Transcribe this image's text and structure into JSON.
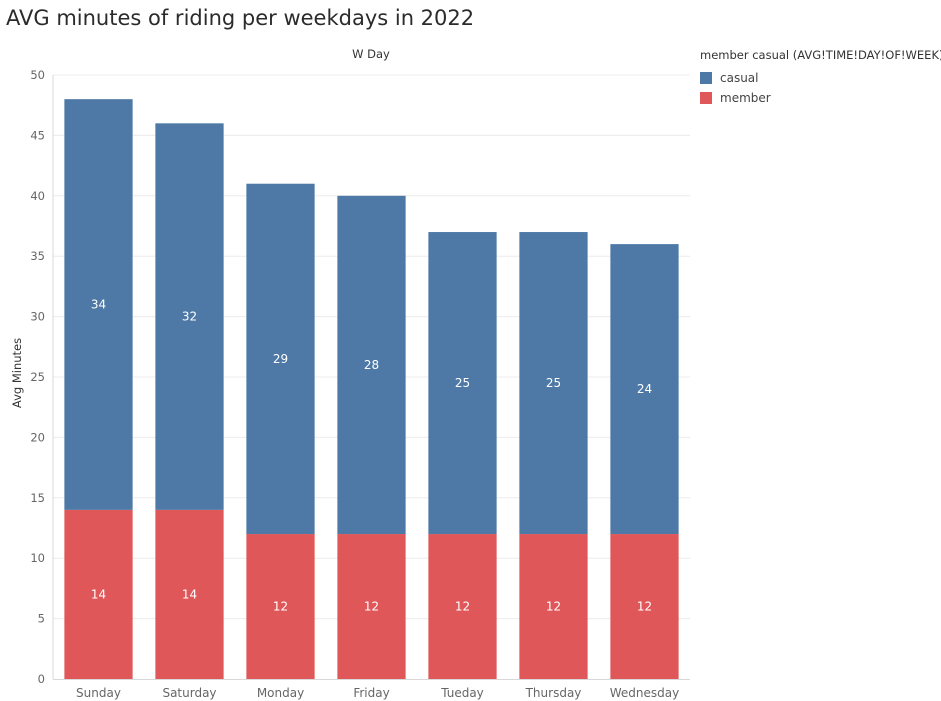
{
  "chart_data": {
    "type": "bar",
    "stacked": true,
    "title": "AVG minutes of riding per weekdays in 2022",
    "column_header": "W Day",
    "xlabel": "",
    "ylabel": "Avg Minutes",
    "ylim": [
      0,
      50
    ],
    "yticks": [
      0,
      5,
      10,
      15,
      20,
      25,
      30,
      35,
      40,
      45,
      50
    ],
    "grid": true,
    "legend_position": "right",
    "legend_title": "member casual (AVG!TIME!DAY!OF!WEEK)",
    "categories": [
      "Sunday",
      "Saturday",
      "Monday",
      "Friday",
      "Tueday",
      "Thursday",
      "Wednesday"
    ],
    "series": [
      {
        "name": "member",
        "color": "#e05759",
        "values": [
          14,
          14,
          12,
          12,
          12,
          12,
          12
        ]
      },
      {
        "name": "casual",
        "color": "#4e79a7",
        "values": [
          34,
          32,
          29,
          28,
          25,
          25,
          24
        ]
      }
    ],
    "legend_order": [
      "casual",
      "member"
    ]
  }
}
